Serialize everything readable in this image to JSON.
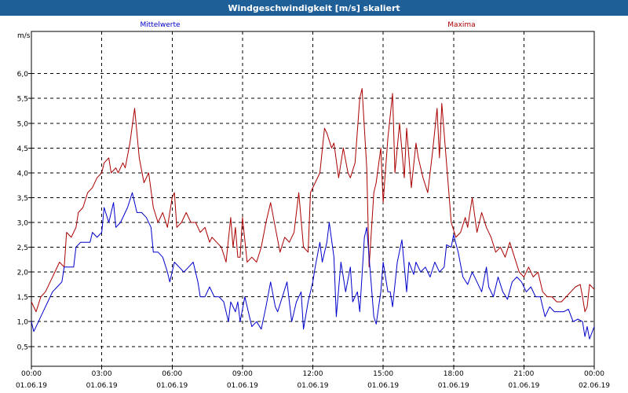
{
  "window": {
    "title": "Windgeschwindigkeit [m/s] skaliert"
  },
  "chart_data": {
    "type": "line",
    "title": "Windgeschwindigkeit [m/s] skaliert",
    "ylabel": "m/s",
    "xlabel": "",
    "ylim": [
      0.1,
      6.85
    ],
    "xlim": [
      0,
      24
    ],
    "grid": true,
    "legend_placement": "top",
    "y_ticks": [
      0.5,
      1.0,
      1.5,
      2.0,
      2.5,
      3.0,
      3.5,
      4.0,
      4.5,
      5.0,
      5.5,
      6.0
    ],
    "y_tick_labels": [
      "0,5",
      "1,0",
      "1,5",
      "2,0",
      "2,5",
      "3,0",
      "3,5",
      "4,0",
      "4,5",
      "5,0",
      "5,5",
      "6,0"
    ],
    "x_ticks": [
      {
        "hour": 0,
        "time": "00:00",
        "date": "01.06.19"
      },
      {
        "hour": 3,
        "time": "03:00",
        "date": "01.06.19"
      },
      {
        "hour": 6,
        "time": "06:00",
        "date": "01.06.19"
      },
      {
        "hour": 9,
        "time": "09:00",
        "date": "01.06.19"
      },
      {
        "hour": 12,
        "time": "12:00",
        "date": "01.06.19"
      },
      {
        "hour": 15,
        "time": "15:00",
        "date": "01.06.19"
      },
      {
        "hour": 18,
        "time": "18:00",
        "date": "01.06.19"
      },
      {
        "hour": 21,
        "time": "21:00",
        "date": "01.06.19"
      },
      {
        "hour": 24,
        "time": "00:00",
        "date": "02.06.19"
      }
    ],
    "series": [
      {
        "name": "Mittelwerte",
        "color": "#0000cc",
        "points": [
          [
            0.0,
            1.0
          ],
          [
            0.1,
            0.8
          ],
          [
            0.3,
            1.0
          ],
          [
            0.5,
            1.2
          ],
          [
            0.7,
            1.4
          ],
          [
            0.9,
            1.6
          ],
          [
            1.1,
            1.7
          ],
          [
            1.3,
            1.8
          ],
          [
            1.4,
            2.1
          ],
          [
            1.6,
            2.1
          ],
          [
            1.8,
            2.1
          ],
          [
            1.9,
            2.5
          ],
          [
            2.1,
            2.6
          ],
          [
            2.3,
            2.6
          ],
          [
            2.5,
            2.6
          ],
          [
            2.6,
            2.8
          ],
          [
            2.8,
            2.7
          ],
          [
            3.0,
            2.8
          ],
          [
            3.1,
            3.3
          ],
          [
            3.3,
            3.0
          ],
          [
            3.5,
            3.4
          ],
          [
            3.6,
            2.9
          ],
          [
            3.8,
            3.0
          ],
          [
            4.0,
            3.2
          ],
          [
            4.1,
            3.3
          ],
          [
            4.3,
            3.6
          ],
          [
            4.5,
            3.2
          ],
          [
            4.7,
            3.2
          ],
          [
            4.9,
            3.1
          ],
          [
            5.1,
            2.9
          ],
          [
            5.2,
            2.4
          ],
          [
            5.4,
            2.4
          ],
          [
            5.6,
            2.3
          ],
          [
            5.8,
            2.0
          ],
          [
            5.9,
            1.8
          ],
          [
            6.1,
            2.2
          ],
          [
            6.3,
            2.1
          ],
          [
            6.5,
            2.0
          ],
          [
            6.7,
            2.1
          ],
          [
            6.9,
            2.2
          ],
          [
            7.1,
            1.8
          ],
          [
            7.2,
            1.5
          ],
          [
            7.4,
            1.5
          ],
          [
            7.6,
            1.7
          ],
          [
            7.8,
            1.5
          ],
          [
            8.0,
            1.5
          ],
          [
            8.2,
            1.4
          ],
          [
            8.4,
            1.0
          ],
          [
            8.5,
            1.4
          ],
          [
            8.7,
            1.2
          ],
          [
            8.8,
            1.4
          ],
          [
            8.9,
            1.0
          ],
          [
            9.1,
            1.5
          ],
          [
            9.3,
            1.1
          ],
          [
            9.4,
            0.9
          ],
          [
            9.6,
            1.0
          ],
          [
            9.8,
            0.85
          ],
          [
            10.0,
            1.3
          ],
          [
            10.2,
            1.8
          ],
          [
            10.4,
            1.3
          ],
          [
            10.5,
            1.2
          ],
          [
            10.7,
            1.5
          ],
          [
            10.9,
            1.8
          ],
          [
            11.1,
            1.0
          ],
          [
            11.3,
            1.4
          ],
          [
            11.5,
            1.6
          ],
          [
            11.6,
            0.85
          ],
          [
            11.8,
            1.4
          ],
          [
            12.0,
            1.8
          ],
          [
            12.1,
            2.1
          ],
          [
            12.3,
            2.6
          ],
          [
            12.4,
            2.2
          ],
          [
            12.6,
            2.6
          ],
          [
            12.7,
            3.0
          ],
          [
            12.9,
            2.3
          ],
          [
            13.0,
            1.1
          ],
          [
            13.2,
            2.2
          ],
          [
            13.4,
            1.6
          ],
          [
            13.6,
            2.1
          ],
          [
            13.7,
            1.4
          ],
          [
            13.9,
            1.6
          ],
          [
            14.0,
            1.2
          ],
          [
            14.2,
            2.7
          ],
          [
            14.3,
            2.9
          ],
          [
            14.5,
            1.7
          ],
          [
            14.6,
            1.1
          ],
          [
            14.7,
            0.95
          ],
          [
            14.9,
            1.6
          ],
          [
            15.0,
            2.2
          ],
          [
            15.2,
            1.6
          ],
          [
            15.3,
            1.6
          ],
          [
            15.4,
            1.3
          ],
          [
            15.6,
            2.2
          ],
          [
            15.8,
            2.65
          ],
          [
            16.0,
            1.6
          ],
          [
            16.1,
            2.2
          ],
          [
            16.3,
            1.95
          ],
          [
            16.4,
            2.2
          ],
          [
            16.6,
            2.0
          ],
          [
            16.8,
            2.1
          ],
          [
            17.0,
            1.9
          ],
          [
            17.2,
            2.2
          ],
          [
            17.4,
            2.0
          ],
          [
            17.6,
            2.1
          ],
          [
            17.7,
            2.55
          ],
          [
            17.9,
            2.5
          ],
          [
            18.0,
            2.75
          ],
          [
            18.2,
            2.4
          ],
          [
            18.4,
            1.9
          ],
          [
            18.6,
            1.75
          ],
          [
            18.8,
            2.0
          ],
          [
            19.0,
            1.8
          ],
          [
            19.2,
            1.6
          ],
          [
            19.4,
            2.1
          ],
          [
            19.5,
            1.7
          ],
          [
            19.7,
            1.5
          ],
          [
            19.9,
            1.9
          ],
          [
            20.1,
            1.6
          ],
          [
            20.3,
            1.45
          ],
          [
            20.5,
            1.8
          ],
          [
            20.7,
            1.9
          ],
          [
            20.9,
            1.8
          ],
          [
            21.1,
            1.6
          ],
          [
            21.3,
            1.7
          ],
          [
            21.5,
            1.5
          ],
          [
            21.7,
            1.5
          ],
          [
            21.9,
            1.1
          ],
          [
            22.1,
            1.3
          ],
          [
            22.3,
            1.2
          ],
          [
            22.5,
            1.2
          ],
          [
            22.7,
            1.2
          ],
          [
            22.9,
            1.25
          ],
          [
            23.1,
            1.0
          ],
          [
            23.3,
            1.05
          ],
          [
            23.5,
            1.0
          ],
          [
            23.6,
            0.7
          ],
          [
            23.7,
            0.9
          ],
          [
            23.8,
            0.65
          ],
          [
            24.0,
            0.9
          ]
        ]
      },
      {
        "name": "Maxima",
        "color": "#aa0000",
        "points": [
          [
            0.0,
            1.4
          ],
          [
            0.2,
            1.2
          ],
          [
            0.4,
            1.5
          ],
          [
            0.6,
            1.6
          ],
          [
            0.8,
            1.8
          ],
          [
            1.0,
            2.0
          ],
          [
            1.2,
            2.2
          ],
          [
            1.4,
            2.1
          ],
          [
            1.5,
            2.8
          ],
          [
            1.7,
            2.7
          ],
          [
            1.9,
            2.9
          ],
          [
            2.0,
            3.2
          ],
          [
            2.2,
            3.3
          ],
          [
            2.4,
            3.6
          ],
          [
            2.6,
            3.7
          ],
          [
            2.8,
            3.9
          ],
          [
            3.0,
            4.0
          ],
          [
            3.1,
            4.2
          ],
          [
            3.3,
            4.3
          ],
          [
            3.4,
            4.0
          ],
          [
            3.6,
            4.1
          ],
          [
            3.7,
            4.0
          ],
          [
            3.9,
            4.2
          ],
          [
            4.0,
            4.1
          ],
          [
            4.2,
            4.6
          ],
          [
            4.4,
            5.3
          ],
          [
            4.6,
            4.3
          ],
          [
            4.8,
            3.8
          ],
          [
            5.0,
            4.0
          ],
          [
            5.2,
            3.3
          ],
          [
            5.4,
            3.0
          ],
          [
            5.6,
            3.2
          ],
          [
            5.8,
            2.9
          ],
          [
            6.0,
            3.5
          ],
          [
            6.1,
            3.6
          ],
          [
            6.2,
            2.9
          ],
          [
            6.4,
            3.0
          ],
          [
            6.6,
            3.2
          ],
          [
            6.8,
            3.0
          ],
          [
            7.0,
            3.0
          ],
          [
            7.2,
            2.8
          ],
          [
            7.4,
            2.9
          ],
          [
            7.6,
            2.6
          ],
          [
            7.7,
            2.7
          ],
          [
            7.9,
            2.6
          ],
          [
            8.1,
            2.5
          ],
          [
            8.3,
            2.2
          ],
          [
            8.5,
            3.1
          ],
          [
            8.6,
            2.5
          ],
          [
            8.7,
            2.9
          ],
          [
            8.8,
            2.3
          ],
          [
            8.9,
            2.3
          ],
          [
            9.0,
            3.1
          ],
          [
            9.2,
            2.2
          ],
          [
            9.4,
            2.3
          ],
          [
            9.6,
            2.2
          ],
          [
            9.8,
            2.5
          ],
          [
            10.0,
            3.0
          ],
          [
            10.2,
            3.4
          ],
          [
            10.4,
            2.9
          ],
          [
            10.6,
            2.4
          ],
          [
            10.8,
            2.7
          ],
          [
            11.0,
            2.6
          ],
          [
            11.2,
            2.8
          ],
          [
            11.4,
            3.6
          ],
          [
            11.6,
            2.5
          ],
          [
            11.8,
            2.4
          ],
          [
            11.9,
            3.6
          ],
          [
            12.1,
            3.8
          ],
          [
            12.3,
            4.0
          ],
          [
            12.5,
            4.9
          ],
          [
            12.6,
            4.8
          ],
          [
            12.8,
            4.5
          ],
          [
            12.9,
            4.6
          ],
          [
            13.1,
            3.9
          ],
          [
            13.3,
            4.5
          ],
          [
            13.5,
            4.0
          ],
          [
            13.6,
            3.9
          ],
          [
            13.8,
            4.2
          ],
          [
            14.0,
            5.5
          ],
          [
            14.1,
            5.7
          ],
          [
            14.3,
            4.1
          ],
          [
            14.4,
            2.1
          ],
          [
            14.6,
            3.6
          ],
          [
            14.7,
            3.8
          ],
          [
            14.9,
            4.5
          ],
          [
            15.0,
            3.4
          ],
          [
            15.2,
            4.7
          ],
          [
            15.4,
            5.6
          ],
          [
            15.5,
            4.0
          ],
          [
            15.7,
            5.0
          ],
          [
            15.9,
            3.9
          ],
          [
            16.0,
            4.9
          ],
          [
            16.2,
            3.7
          ],
          [
            16.4,
            4.6
          ],
          [
            16.5,
            4.3
          ],
          [
            16.7,
            3.9
          ],
          [
            16.9,
            3.6
          ],
          [
            17.1,
            4.4
          ],
          [
            17.3,
            5.3
          ],
          [
            17.4,
            4.3
          ],
          [
            17.5,
            5.4
          ],
          [
            17.7,
            4.2
          ],
          [
            17.9,
            3.0
          ],
          [
            18.1,
            2.7
          ],
          [
            18.3,
            2.8
          ],
          [
            18.5,
            3.1
          ],
          [
            18.6,
            2.9
          ],
          [
            18.8,
            3.5
          ],
          [
            19.0,
            2.8
          ],
          [
            19.2,
            3.2
          ],
          [
            19.4,
            2.9
          ],
          [
            19.6,
            2.7
          ],
          [
            19.8,
            2.4
          ],
          [
            20.0,
            2.5
          ],
          [
            20.2,
            2.3
          ],
          [
            20.4,
            2.6
          ],
          [
            20.6,
            2.3
          ],
          [
            20.8,
            2.0
          ],
          [
            21.0,
            1.9
          ],
          [
            21.2,
            2.1
          ],
          [
            21.4,
            1.9
          ],
          [
            21.6,
            2.0
          ],
          [
            21.8,
            1.6
          ],
          [
            22.0,
            1.5
          ],
          [
            22.2,
            1.5
          ],
          [
            22.4,
            1.4
          ],
          [
            22.6,
            1.4
          ],
          [
            22.8,
            1.5
          ],
          [
            23.0,
            1.6
          ],
          [
            23.2,
            1.7
          ],
          [
            23.4,
            1.75
          ],
          [
            23.5,
            1.5
          ],
          [
            23.6,
            1.2
          ],
          [
            23.7,
            1.3
          ],
          [
            23.8,
            1.75
          ],
          [
            24.0,
            1.65
          ]
        ]
      }
    ]
  }
}
